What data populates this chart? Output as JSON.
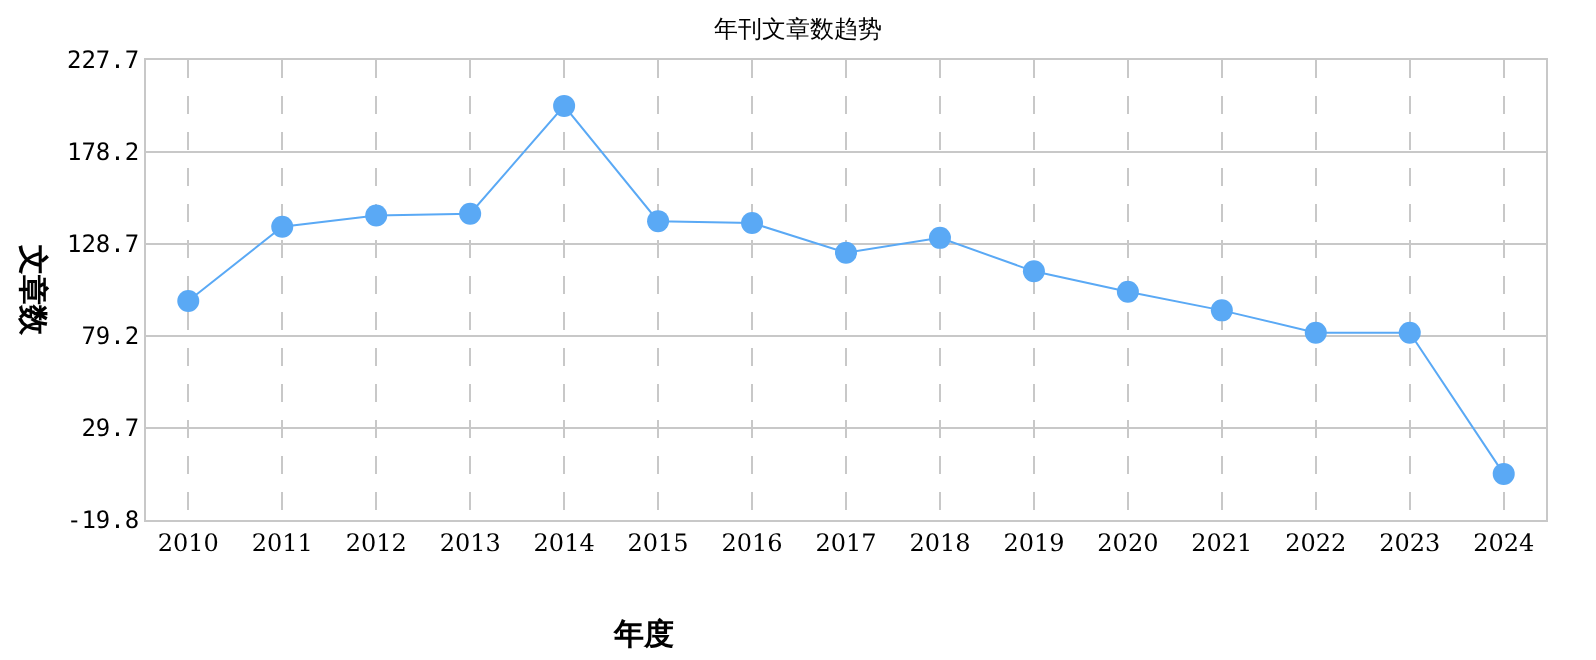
{
  "chart_data": {
    "type": "line",
    "title": "年刊文章数趋势",
    "xlabel": "年度",
    "ylabel": "文章数",
    "categories": [
      "2010",
      "2011",
      "2012",
      "2013",
      "2014",
      "2015",
      "2016",
      "2017",
      "2018",
      "2019",
      "2020",
      "2021",
      "2022",
      "2023",
      "2024"
    ],
    "series": [
      {
        "color": "#5aa9f5",
        "values": [
          98,
          138,
          144,
          145,
          203,
          141,
          140,
          124,
          132,
          114,
          103,
          93,
          81,
          81,
          5
        ]
      }
    ],
    "ylim": [
      -19.8,
      227.7
    ],
    "yticks": [
      -19.8,
      29.7,
      79.2,
      128.7,
      178.2,
      227.7
    ],
    "grid": true,
    "marker": "circle",
    "line_style": "solid"
  }
}
